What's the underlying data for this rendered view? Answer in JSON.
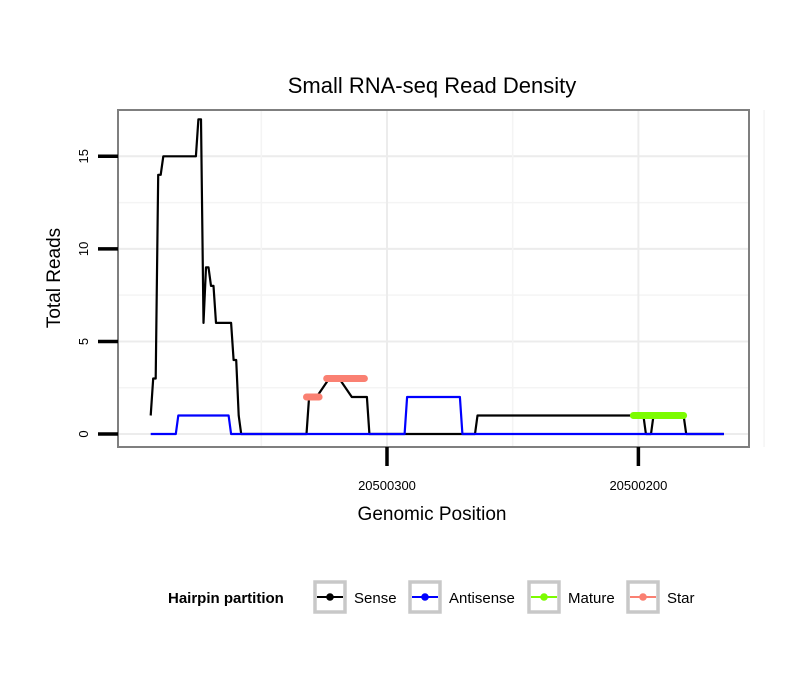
{
  "chart_data": {
    "type": "line",
    "title": "Small RNA-seq Read Density",
    "xlabel": "Genomic Position",
    "ylabel": "Total Reads",
    "x_reversed": true,
    "xlim": [
      20500407,
      20500156
    ],
    "ylim": [
      -0.7,
      17.5
    ],
    "x_ticks": [
      20500300,
      20500200
    ],
    "x_tick_labels": [
      "20500300",
      "20500200"
    ],
    "y_ticks": [
      0,
      5,
      10,
      15
    ],
    "y_tick_labels": [
      "0",
      "5",
      "10",
      "15"
    ],
    "grid": true,
    "legend": {
      "title": "Hairpin partition",
      "position": "bottom",
      "entries": [
        {
          "label": "Sense",
          "color": "#000000"
        },
        {
          "label": "Antisense",
          "color": "#0000ff"
        },
        {
          "label": "Mature",
          "color": "#7cfc00"
        },
        {
          "label": "Star",
          "color": "#fa8072"
        }
      ]
    },
    "series": [
      {
        "name": "Sense",
        "color": "#000000",
        "width": 2.2,
        "x": [
          20500394,
          20500393,
          20500392,
          20500391,
          20500390,
          20500389,
          20500388,
          20500376,
          20500375,
          20500374,
          20500373,
          20500372,
          20500371,
          20500370,
          20500369,
          20500368,
          20500367,
          20500366,
          20500365,
          20500362,
          20500361,
          20500360,
          20500359,
          20500358,
          20500350,
          20500332,
          20500331,
          20500330,
          20500328,
          20500323,
          20500321,
          20500319,
          20500314,
          20500313,
          20500308,
          20500307,
          20500265,
          20500264,
          20500262,
          20500202,
          20500198,
          20500197,
          20500195,
          20500194,
          20500193,
          20500182,
          20500181,
          20500166
        ],
        "y": [
          1,
          3,
          3,
          14,
          14,
          15,
          15,
          15,
          17,
          17,
          6,
          9,
          9,
          8,
          8,
          6,
          6,
          6,
          6,
          6,
          4,
          4,
          1,
          0,
          0,
          0,
          2,
          2,
          2,
          3,
          3,
          3,
          2,
          2,
          2,
          0,
          0,
          1,
          1,
          1,
          1,
          0,
          0,
          1,
          1,
          1,
          0,
          0
        ]
      },
      {
        "name": "Antisense",
        "color": "#0000ff",
        "width": 2.2,
        "x": [
          20500394,
          20500384,
          20500383,
          20500363,
          20500362,
          20500300,
          20500299,
          20500293,
          20500292,
          20500271,
          20500270,
          20500166
        ],
        "y": [
          0,
          0,
          1,
          1,
          0,
          0,
          0,
          0,
          2,
          2,
          0,
          0
        ]
      },
      {
        "name": "Mature",
        "color": "#7cfc00",
        "width": 7,
        "x": [
          20500202,
          20500182
        ],
        "y": [
          1,
          1
        ]
      },
      {
        "name": "Star",
        "color": "#fa8072",
        "width": 7,
        "x": [
          20500324,
          20500309
        ],
        "y": [
          3,
          3
        ]
      },
      {
        "name": "Star",
        "color": "#fa8072",
        "width": 7,
        "x": [
          20500332,
          20500327
        ],
        "y": [
          2,
          2
        ]
      }
    ]
  }
}
